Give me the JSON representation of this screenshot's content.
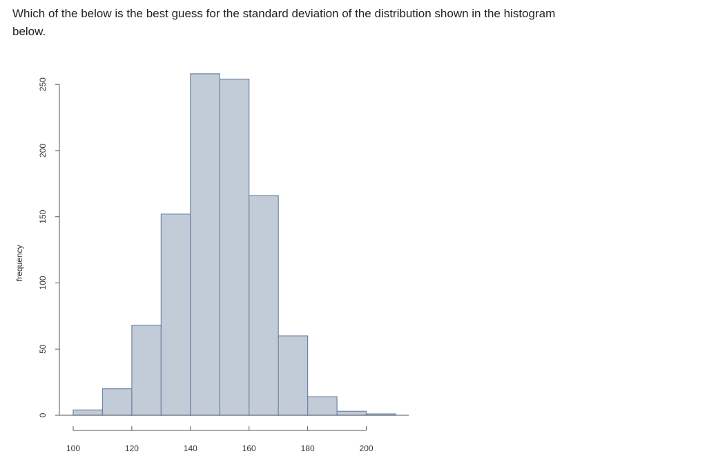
{
  "question": {
    "text": "Which of the below is the best guess for the standard deviation of the distribution shown in the histogram below."
  },
  "chart_data": {
    "type": "bar",
    "subtype": "histogram",
    "title": "",
    "xlabel": "",
    "ylabel": "frequency",
    "bin_width": 10,
    "bins": [
      {
        "start": 100,
        "end": 110,
        "count": 4
      },
      {
        "start": 110,
        "end": 120,
        "count": 20
      },
      {
        "start": 120,
        "end": 130,
        "count": 68
      },
      {
        "start": 130,
        "end": 140,
        "count": 152
      },
      {
        "start": 140,
        "end": 150,
        "count": 258
      },
      {
        "start": 150,
        "end": 160,
        "count": 254
      },
      {
        "start": 160,
        "end": 170,
        "count": 166
      },
      {
        "start": 170,
        "end": 180,
        "count": 60
      },
      {
        "start": 180,
        "end": 190,
        "count": 14
      },
      {
        "start": 190,
        "end": 200,
        "count": 3
      },
      {
        "start": 200,
        "end": 210,
        "count": 1
      }
    ],
    "x_ticks": [
      100,
      120,
      140,
      160,
      180,
      200
    ],
    "y_ticks": [
      0,
      50,
      100,
      150,
      200,
      250
    ],
    "xlim": [
      100,
      210
    ],
    "ylim": [
      0,
      260
    ],
    "grid": false,
    "colors": {
      "bar_fill": "#c2ccd8",
      "bar_stroke": "#6f83a6"
    }
  }
}
